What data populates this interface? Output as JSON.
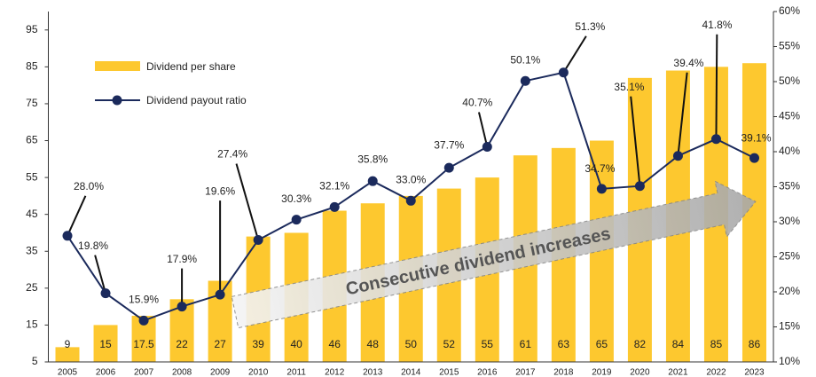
{
  "chart_data": {
    "type": "bar_line",
    "categories": [
      "2005",
      "2006",
      "2007",
      "2008",
      "2009",
      "2010",
      "2011",
      "2012",
      "2013",
      "2014",
      "2015",
      "2016",
      "2017",
      "2018",
      "2019",
      "2020",
      "2021",
      "2022",
      "2023"
    ],
    "series": [
      {
        "name": "Dividend per share",
        "type": "bar",
        "color": "#fdc82f",
        "values": [
          9,
          15,
          17.5,
          22,
          27,
          39,
          40,
          46,
          48,
          50,
          52,
          55,
          61,
          63,
          65,
          82,
          84,
          85,
          86
        ]
      },
      {
        "name": "Dividend payout ratio",
        "type": "line",
        "axis": "y2",
        "color": "#1b2a5c",
        "values": [
          28.0,
          19.8,
          15.9,
          17.9,
          19.6,
          27.4,
          30.3,
          32.1,
          35.8,
          33.0,
          37.7,
          40.7,
          50.1,
          51.3,
          34.7,
          35.1,
          39.4,
          41.8,
          39.1
        ],
        "value_labels": [
          "28.0%",
          "19.8%",
          "15.9%",
          "17.9%",
          "19.6%",
          "27.4%",
          "30.3%",
          "32.1%",
          "35.8%",
          "33.0%",
          "37.7%",
          "40.7%",
          "50.1%",
          "51.3%",
          "34.7%",
          "35.1%",
          "39.4%",
          "41.8%",
          "39.1%"
        ]
      }
    ],
    "ylim": [
      5,
      100
    ],
    "yticks": [
      5,
      15,
      25,
      35,
      45,
      55,
      65,
      75,
      85,
      95
    ],
    "y2lim": [
      10,
      60
    ],
    "y2ticks": [
      {
        "value": 10,
        "label": "10%"
      },
      {
        "value": 15,
        "label": "15%"
      },
      {
        "value": 20,
        "label": "20%"
      },
      {
        "value": 25,
        "label": "25%"
      },
      {
        "value": 30,
        "label": "30%"
      },
      {
        "value": 35,
        "label": "35%"
      },
      {
        "value": 40,
        "label": "40%"
      },
      {
        "value": 45,
        "label": "45%"
      },
      {
        "value": 50,
        "label": "50%"
      },
      {
        "value": 55,
        "label": "55%"
      },
      {
        "value": 60,
        "label": "60%"
      }
    ],
    "annotation": "Consecutive dividend increases",
    "legend": "upper left"
  }
}
